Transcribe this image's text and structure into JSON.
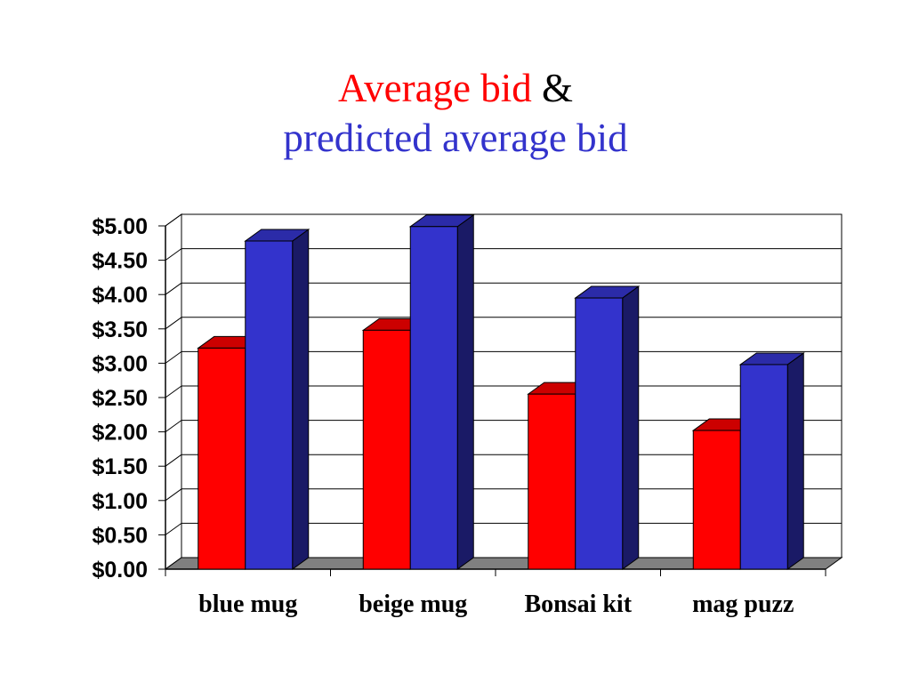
{
  "colors": {
    "actual_front": "#ff0000",
    "actual_top": "#cc0000",
    "actual_side": "#990000",
    "predicted_front": "#3333cc",
    "predicted_top": "#2b2ba8",
    "predicted_side": "#1a1a66",
    "floor": "#808080",
    "title_red": "#ff0000",
    "title_blue": "#3333cc"
  },
  "chart_data": {
    "type": "bar",
    "title_parts": [
      "Average bid",
      "&",
      "predicted average bid"
    ],
    "categories": [
      "blue mug",
      "beige mug",
      "Bonsai kit",
      "mag puzz"
    ],
    "series": [
      {
        "name": "Average bid",
        "values": [
          3.22,
          3.48,
          2.55,
          2.02
        ]
      },
      {
        "name": "predicted average bid",
        "values": [
          4.78,
          4.99,
          3.95,
          2.98
        ]
      }
    ],
    "y_ticks": [
      "$0.00",
      "$0.50",
      "$1.00",
      "$1.50",
      "$2.00",
      "$2.50",
      "$3.00",
      "$3.50",
      "$4.00",
      "$4.50",
      "$5.00"
    ],
    "ylim": [
      0,
      5
    ],
    "grid": true,
    "legend": "none",
    "style": "3d"
  }
}
